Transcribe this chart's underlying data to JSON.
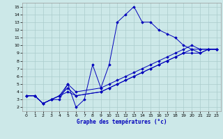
{
  "xlabel": "Graphe des températures (°c)",
  "background_color": "#cce8e8",
  "grid_color": "#aacccc",
  "line_color": "#0000bb",
  "xlim": [
    0,
    23
  ],
  "ylim": [
    2,
    15
  ],
  "xticks": [
    0,
    1,
    2,
    3,
    4,
    5,
    6,
    7,
    8,
    9,
    10,
    11,
    12,
    13,
    14,
    15,
    16,
    17,
    18,
    19,
    20,
    21,
    22,
    23
  ],
  "yticks": [
    2,
    3,
    4,
    5,
    6,
    7,
    8,
    9,
    10,
    11,
    12,
    13,
    14,
    15
  ],
  "lines": [
    {
      "x": [
        0,
        1,
        2,
        3,
        4,
        5,
        6,
        7,
        8,
        9,
        10,
        11,
        12,
        13,
        14,
        15,
        16,
        17,
        18,
        19,
        20,
        21,
        22,
        23
      ],
      "y": [
        3.5,
        3.5,
        2.5,
        3.0,
        3.0,
        5.0,
        2.0,
        3.0,
        7.5,
        4.5,
        7.5,
        13.0,
        14.0,
        15.0,
        13.0,
        13.0,
        12.0,
        11.5,
        11.0,
        10.0,
        9.5,
        9.5,
        9.5,
        9.5
      ]
    },
    {
      "x": [
        0,
        1,
        2,
        3,
        4,
        5,
        6,
        9,
        10,
        11,
        12,
        13,
        14,
        15,
        16,
        17,
        18,
        19,
        20,
        21,
        22,
        23
      ],
      "y": [
        3.5,
        3.5,
        2.5,
        3.0,
        3.5,
        5.0,
        4.0,
        4.5,
        5.0,
        5.5,
        6.0,
        6.5,
        7.0,
        7.5,
        8.0,
        8.5,
        9.0,
        9.5,
        10.0,
        9.5,
        9.5,
        9.5
      ]
    },
    {
      "x": [
        0,
        1,
        2,
        3,
        4,
        5,
        6,
        9,
        10,
        11,
        12,
        13,
        14,
        15,
        16,
        17,
        18,
        19,
        20,
        21,
        22,
        23
      ],
      "y": [
        3.5,
        3.5,
        2.5,
        3.0,
        3.5,
        4.5,
        3.5,
        4.0,
        4.5,
        5.0,
        5.5,
        6.0,
        6.5,
        7.0,
        7.5,
        8.0,
        8.5,
        9.0,
        9.5,
        9.0,
        9.5,
        9.5
      ]
    },
    {
      "x": [
        0,
        1,
        2,
        3,
        4,
        5,
        6,
        9,
        10,
        11,
        12,
        13,
        14,
        15,
        16,
        17,
        18,
        19,
        20,
        21,
        22,
        23
      ],
      "y": [
        3.5,
        3.5,
        2.5,
        3.0,
        3.5,
        4.0,
        3.5,
        4.0,
        4.5,
        5.0,
        5.5,
        6.0,
        6.5,
        7.0,
        7.5,
        8.0,
        8.5,
        9.0,
        9.0,
        9.0,
        9.5,
        9.5
      ]
    }
  ]
}
